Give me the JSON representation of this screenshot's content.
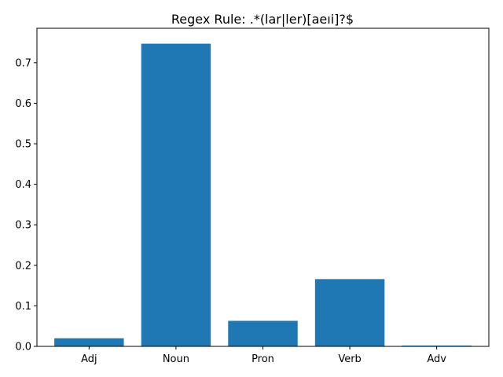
{
  "chart_data": {
    "type": "bar",
    "title": "Regex Rule: .*(lar|ler)[aeıi]?$",
    "xlabel": "",
    "ylabel": "",
    "categories": [
      "Adj",
      "Noun",
      "Pron",
      "Verb",
      "Adv"
    ],
    "values": [
      0.02,
      0.747,
      0.063,
      0.166,
      0.002
    ],
    "ylim": [
      0,
      0.785
    ],
    "yticks": [
      0.0,
      0.1,
      0.2,
      0.3,
      0.4,
      0.5,
      0.6,
      0.7
    ],
    "ytick_labels": [
      "0.0",
      "0.1",
      "0.2",
      "0.3",
      "0.4",
      "0.5",
      "0.6",
      "0.7"
    ],
    "bar_color": "#1f77b4",
    "grid": false,
    "legend": "none"
  }
}
